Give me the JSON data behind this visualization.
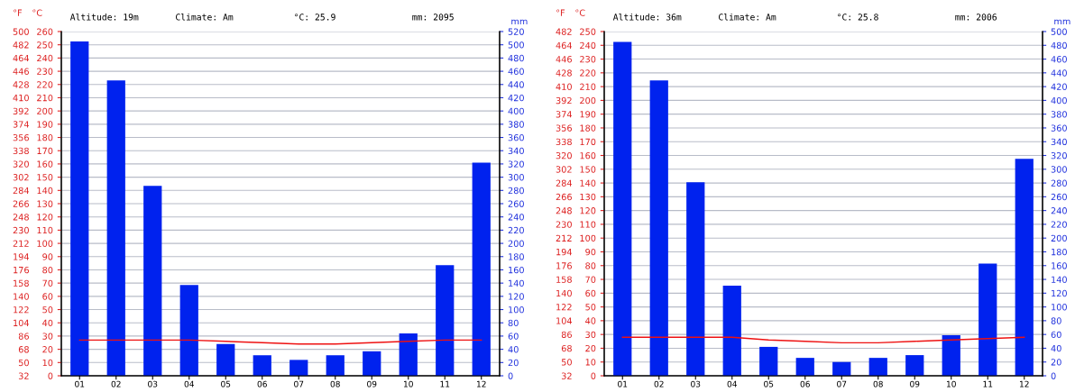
{
  "chart_data": [
    {
      "type": "bar",
      "categories": [
        "01",
        "02",
        "03",
        "04",
        "05",
        "06",
        "07",
        "08",
        "09",
        "10",
        "11",
        "12"
      ],
      "series": [
        {
          "type": "bar",
          "axis": "y2",
          "color": "#0022ee",
          "values": [
            505,
            446,
            287,
            137,
            48,
            31,
            24,
            31,
            37,
            64,
            167,
            322
          ]
        },
        {
          "type": "line",
          "axis": "y",
          "color": "#ee1111",
          "values": [
            27,
            27,
            27,
            27,
            26,
            25,
            24,
            24,
            25,
            26,
            27,
            27
          ]
        }
      ],
      "ylabel": "°C",
      "y2label": "mm",
      "y3label": "°F",
      "ylim": [
        0,
        260
      ],
      "yticks": [
        0,
        10,
        20,
        30,
        40,
        50,
        60,
        70,
        80,
        90,
        100,
        110,
        120,
        130,
        140,
        150,
        160,
        170,
        180,
        190,
        200,
        210,
        220,
        230,
        240,
        250,
        260
      ],
      "y2lim": [
        0,
        520
      ],
      "y2ticks": [
        0,
        20,
        40,
        60,
        80,
        100,
        120,
        140,
        160,
        180,
        200,
        220,
        240,
        260,
        280,
        300,
        320,
        340,
        360,
        380,
        400,
        420,
        440,
        460,
        480,
        500,
        520
      ],
      "y3lim": [
        32,
        500
      ],
      "y3ticks": [
        32,
        50,
        68,
        86,
        104,
        122,
        140,
        158,
        176,
        194,
        212,
        230,
        248,
        266,
        284,
        302,
        320,
        338,
        356,
        374,
        392,
        410,
        428,
        446,
        464,
        482,
        500
      ],
      "annotations": [
        "Altitude: 19m",
        "Climate: Am",
        "°C: 25.9",
        "mm: 2095"
      ],
      "grid": "y",
      "legend": false
    },
    {
      "type": "bar",
      "categories": [
        "01",
        "02",
        "03",
        "04",
        "05",
        "06",
        "07",
        "08",
        "09",
        "10",
        "11",
        "12"
      ],
      "series": [
        {
          "type": "bar",
          "axis": "y2",
          "color": "#0022ee",
          "values": [
            485,
            429,
            281,
            131,
            42,
            26,
            20,
            26,
            30,
            59,
            163,
            315
          ]
        },
        {
          "type": "line",
          "axis": "y",
          "color": "#ee1111",
          "values": [
            28,
            28,
            28,
            28,
            26,
            25,
            24,
            24,
            25,
            26,
            27,
            28
          ]
        }
      ],
      "ylabel": "°C",
      "y2label": "mm",
      "y3label": "°F",
      "ylim": [
        0,
        250
      ],
      "yticks": [
        0,
        10,
        20,
        30,
        40,
        50,
        60,
        70,
        80,
        90,
        100,
        110,
        120,
        130,
        140,
        150,
        160,
        170,
        180,
        190,
        200,
        210,
        220,
        230,
        240,
        250
      ],
      "y2lim": [
        0,
        500
      ],
      "y2ticks": [
        0,
        20,
        40,
        60,
        80,
        100,
        120,
        140,
        160,
        180,
        200,
        220,
        240,
        260,
        280,
        300,
        320,
        340,
        360,
        380,
        400,
        420,
        440,
        460,
        480,
        500
      ],
      "y3lim": [
        32,
        482
      ],
      "y3ticks": [
        32,
        50,
        68,
        86,
        104,
        122,
        140,
        158,
        176,
        194,
        212,
        230,
        248,
        266,
        284,
        302,
        320,
        338,
        356,
        374,
        392,
        410,
        428,
        446,
        464,
        482
      ],
      "annotations": [
        "Altitude: 36m",
        "Climate: Am",
        "°C: 25.8",
        "mm: 2006"
      ],
      "grid": "y",
      "legend": false
    }
  ]
}
